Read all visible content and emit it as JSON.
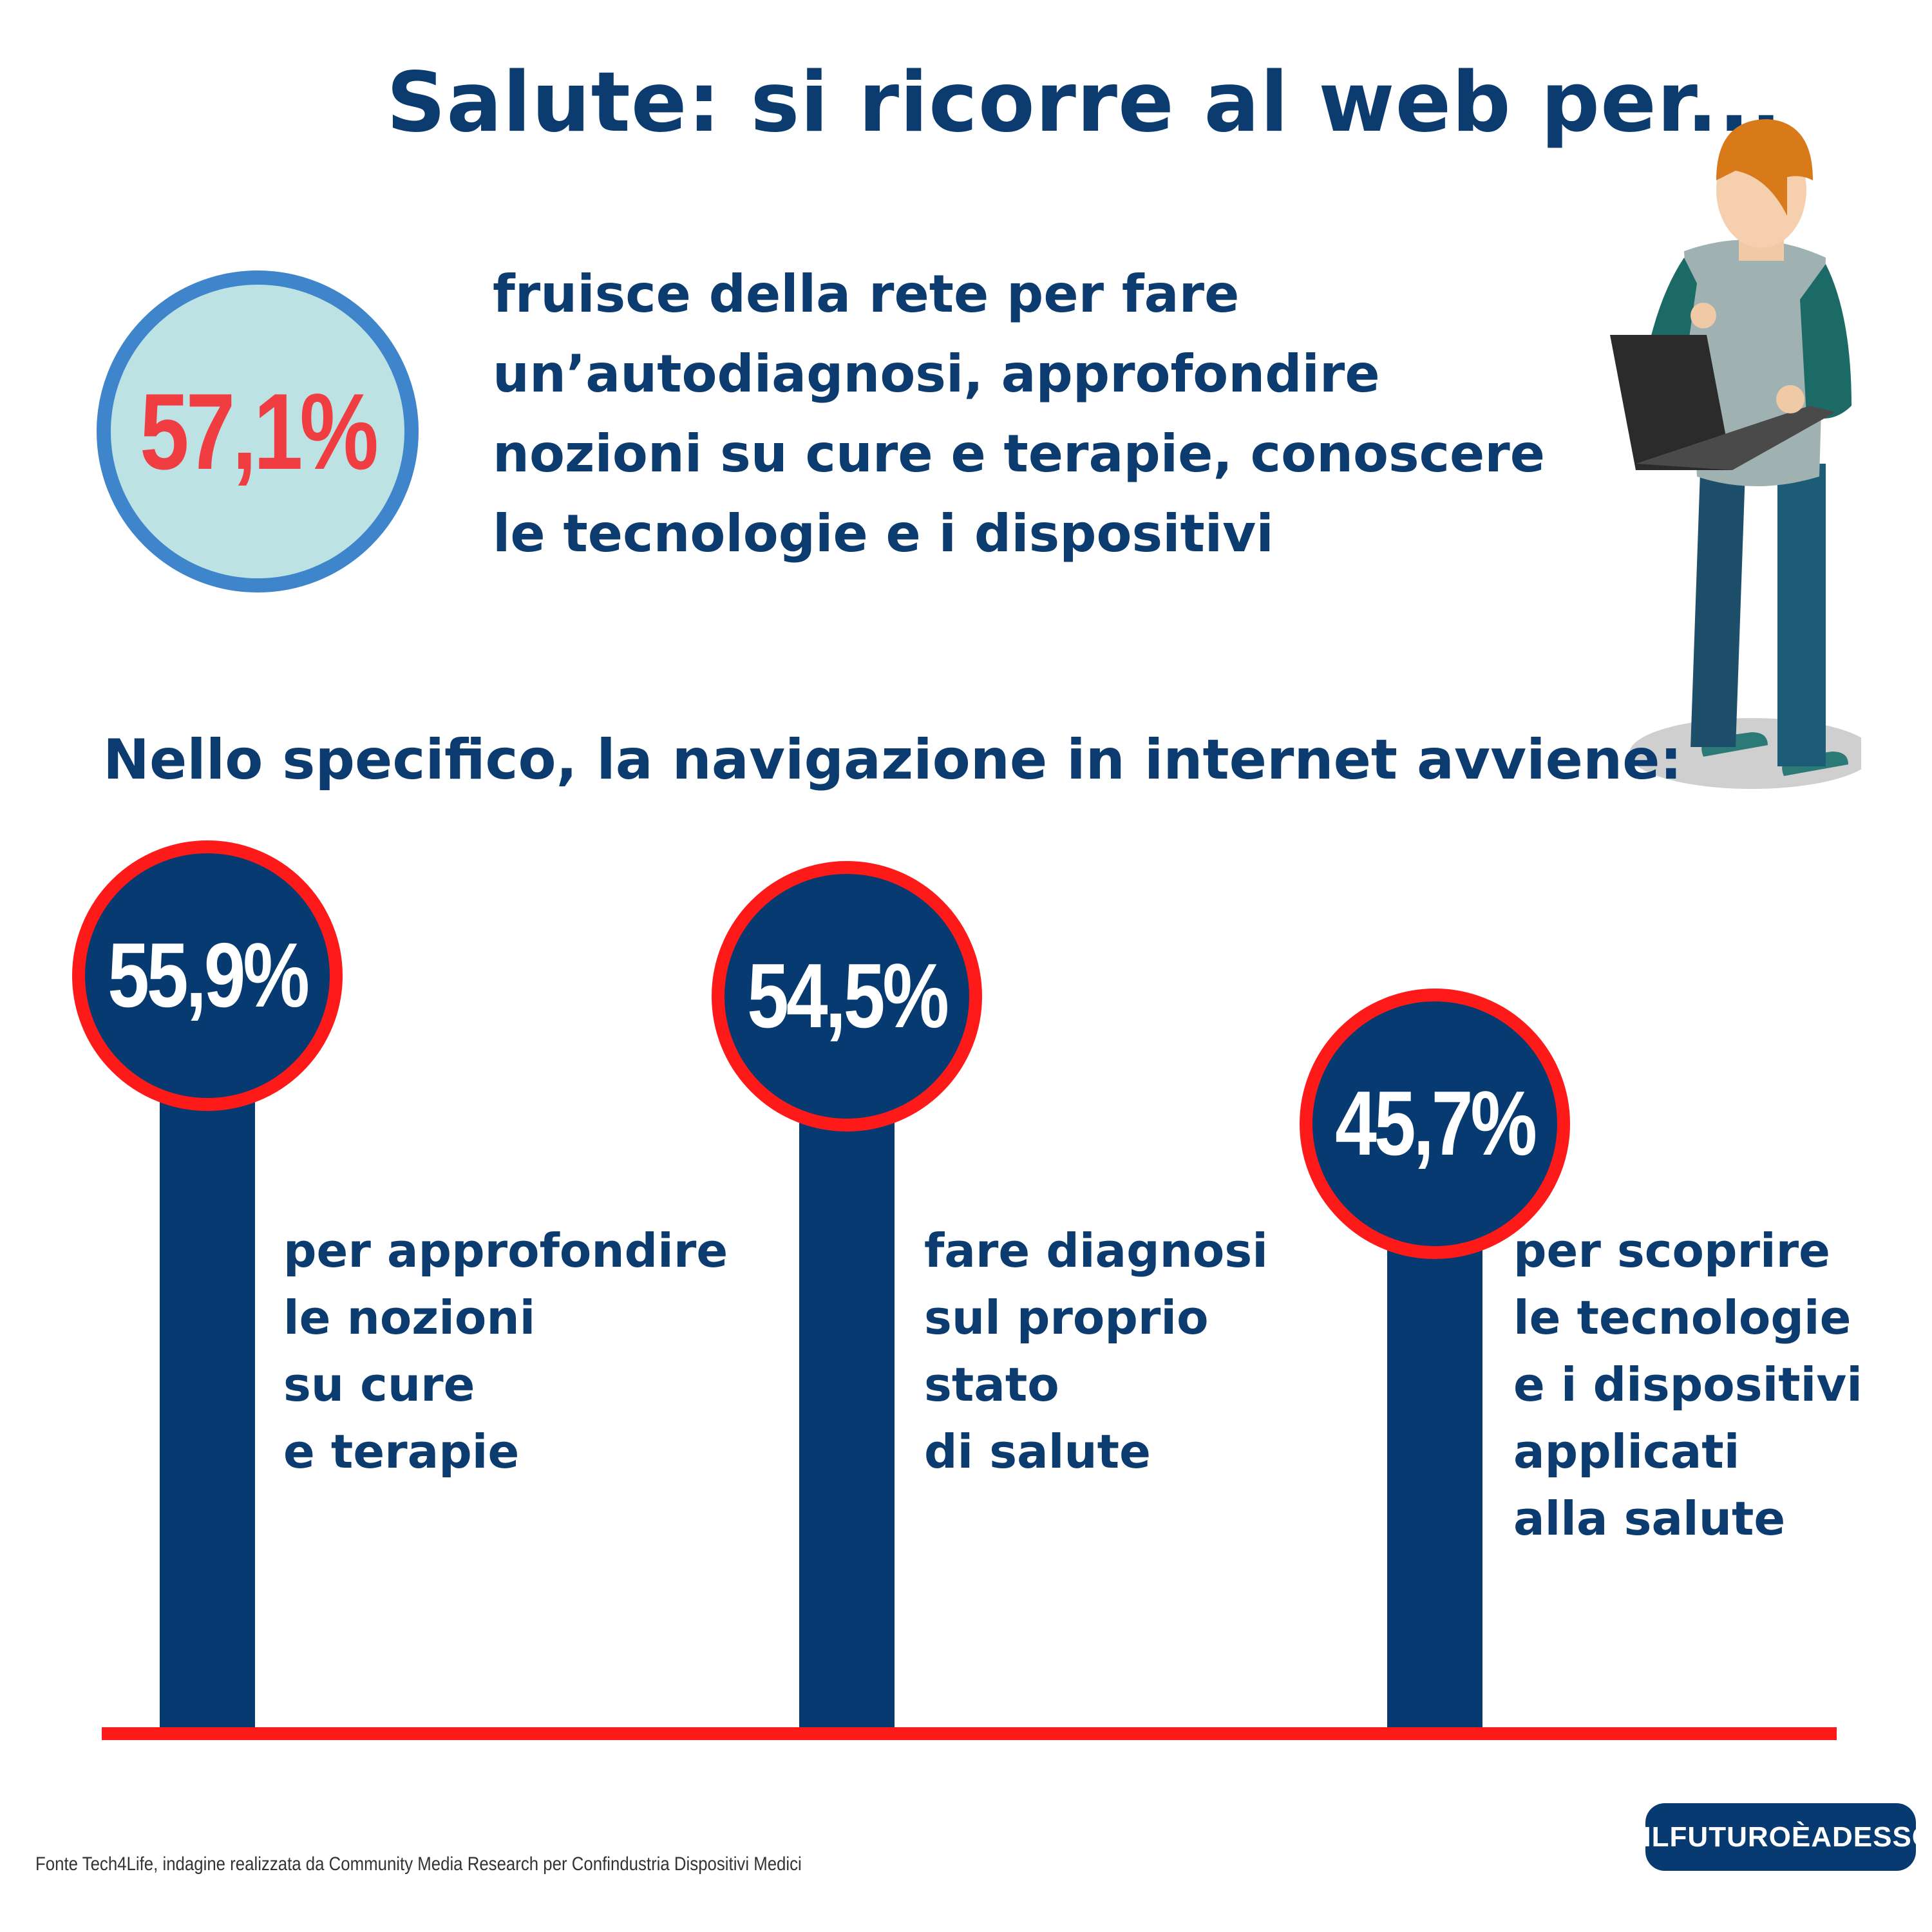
{
  "title": "Salute: si ricorre al web per...",
  "intro": {
    "value": "57,1%",
    "lines": [
      "fruisce della rete per fare",
      "un’autodiagnosi, approfondire",
      "nozioni su cure e terapie, conoscere",
      "le tecnologie e i dispositivi"
    ]
  },
  "subheading": "Nello specifico, la navigazione in internet avviene:",
  "chart_data": {
    "type": "bar",
    "categories": [
      "per approfondire le nozioni su cure e terapie",
      "fare diagnosi sul proprio stato di salute",
      "per scoprire le tecnologie e i dispositivi applicati alla salute"
    ],
    "values": [
      55.9,
      54.5,
      45.7
    ],
    "value_labels": [
      "55,9%",
      "54,5%",
      "45,7%"
    ],
    "description_lines": [
      [
        "per approfondire",
        "le nozioni",
        "su cure",
        "e terapie"
      ],
      [
        "fare diagnosi",
        "sul proprio",
        "stato",
        "di salute"
      ],
      [
        "per scoprire",
        "le tecnologie",
        "e i dispositivi",
        "applicati",
        "alla salute"
      ]
    ],
    "colors": {
      "stem": "#063a70",
      "ring": "#ff1a1a",
      "baseline": "#ff1a1a"
    }
  },
  "source": "Fonte Tech4Life, indagine realizzata da Community Media Research per Confindustria Dispositivi Medici",
  "hashtag": "#ILFUTUROÈADESSO",
  "illustration": {
    "icon": "person-with-laptop-icon"
  },
  "colors": {
    "navy": "#0b3b6f",
    "red": "#ef3d42",
    "circle_fill": "#bde2e4",
    "circle_border": "#3f85cc"
  }
}
